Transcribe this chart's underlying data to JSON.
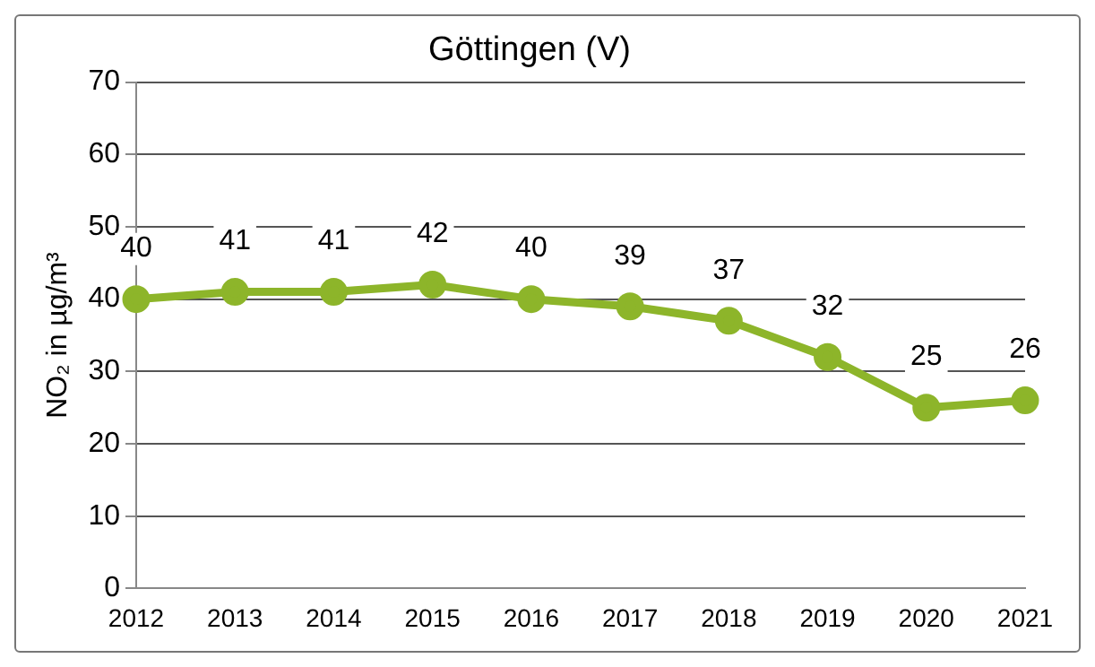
{
  "chart_data": {
    "type": "line",
    "title": "Göttingen (V)",
    "ylabel": "NO₂ in µg/m³",
    "categories": [
      "2012",
      "2013",
      "2014",
      "2015",
      "2016",
      "2017",
      "2018",
      "2019",
      "2020",
      "2021"
    ],
    "series": [
      {
        "color": "#8db52a",
        "values": [
          40,
          41,
          41,
          42,
          40,
          39,
          37,
          32,
          25,
          26
        ]
      }
    ],
    "ylim": [
      0,
      70
    ],
    "yticks": [
      0,
      10,
      20,
      30,
      40,
      50,
      60,
      70
    ],
    "grid": "y",
    "legend": false,
    "marker": "circle",
    "line_style": "solid",
    "data_labels": true
  }
}
